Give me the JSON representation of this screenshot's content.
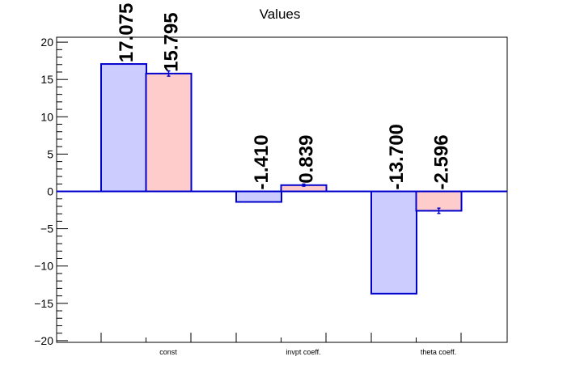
{
  "chart_data": {
    "type": "bar",
    "title": "Values",
    "xlabel": "",
    "ylabel": "",
    "categories": [
      "const",
      "invpt coeff.",
      "theta coeff."
    ],
    "series": [
      {
        "values": [
          17.075,
          -1.41,
          -13.7
        ],
        "labels": [
          "17.075",
          "-1.410",
          "-13.700"
        ],
        "fill": "#ccccff",
        "stroke": "#0000cc",
        "errors": [
          0,
          0,
          0
        ]
      },
      {
        "values": [
          15.795,
          0.839,
          -2.596
        ],
        "labels": [
          "15.795",
          "0.839",
          "-2.596"
        ],
        "fill": "#ffcccc",
        "stroke": "#0000cc",
        "errors": [
          0.35,
          0.15,
          0.35
        ]
      }
    ],
    "ylim": [
      -20.5,
      20.5
    ],
    "yticks": [
      -20,
      -15,
      -10,
      -5,
      0,
      5,
      10,
      15,
      20
    ],
    "ytick_labels": [
      "−20",
      "−15",
      "−10",
      "−5",
      "0",
      "5",
      "10",
      "15",
      "20"
    ],
    "zero_line": true,
    "grid": false,
    "legend": "none"
  }
}
